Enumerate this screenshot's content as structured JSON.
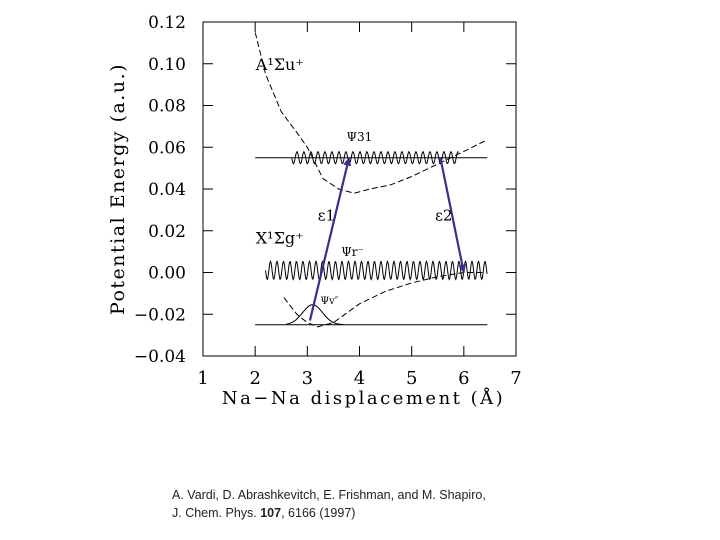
{
  "chart_data": {
    "type": "line",
    "ylabel": "Potential Energy (a.u.)",
    "xlabel": "Na−Na displacement (Å)",
    "xlim": [
      1,
      7
    ],
    "ylim": [
      -0.04,
      0.12
    ],
    "x_ticks": [
      "1",
      "2",
      "3",
      "4",
      "5",
      "6",
      "7"
    ],
    "y_ticks": [
      "−0.04",
      "−0.02",
      "0.00",
      "0.02",
      "0.04",
      "0.06",
      "0.08",
      "0.10",
      "0.12"
    ],
    "grid": false,
    "curve_labels": {
      "upper_state": "A¹Σu⁺",
      "lower_state": "X¹Σg⁺",
      "psi_31": "Ψ31",
      "psi_r": "Ψr⁻",
      "psi_v": "Ψv″",
      "epsilon_1": "ε1",
      "epsilon_2": "ε2"
    },
    "potentials": [
      {
        "state": "A¹Σu⁺",
        "points": [
          [
            2.0,
            0.115
          ],
          [
            2.2,
            0.095
          ],
          [
            2.5,
            0.077
          ],
          [
            2.8,
            0.067
          ],
          [
            3.0,
            0.06
          ],
          [
            3.3,
            0.045
          ],
          [
            3.6,
            0.04
          ],
          [
            3.9,
            0.038
          ],
          [
            4.2,
            0.04
          ],
          [
            4.6,
            0.042
          ],
          [
            5.0,
            0.046
          ],
          [
            5.5,
            0.052
          ],
          [
            6.0,
            0.058
          ],
          [
            6.4,
            0.063
          ]
        ]
      },
      {
        "state": "X¹Σg⁺",
        "points": [
          [
            2.55,
            -0.012
          ],
          [
            2.8,
            -0.02
          ],
          [
            3.0,
            -0.024
          ],
          [
            3.2,
            -0.026
          ],
          [
            3.5,
            -0.024
          ],
          [
            4.0,
            -0.015
          ],
          [
            4.5,
            -0.009
          ],
          [
            5.0,
            -0.005
          ],
          [
            5.5,
            -0.002
          ],
          [
            6.0,
            0.0
          ],
          [
            6.4,
            0.0
          ]
        ]
      }
    ],
    "reference_levels": [
      {
        "y": 0.055,
        "x_range": [
          2.0,
          6.45
        ]
      },
      {
        "y": -0.025,
        "x_range": [
          2.0,
          6.45
        ]
      }
    ],
    "transitions": [
      {
        "label": "ε1",
        "from": [
          3.05,
          -0.023
        ],
        "to": [
          3.8,
          0.055
        ]
      },
      {
        "label": "ε2",
        "from": [
          5.55,
          0.055
        ],
        "to": [
          6.0,
          0.0
        ]
      }
    ]
  },
  "citation": {
    "line1": "A. Vardi, D. Abrashkevitch, E. Frishman, and M. Shapiro,",
    "line2_prefix": "J. Chem. Phys. ",
    "volume": "107",
    "line2_suffix": ", 6166 (1997)"
  }
}
